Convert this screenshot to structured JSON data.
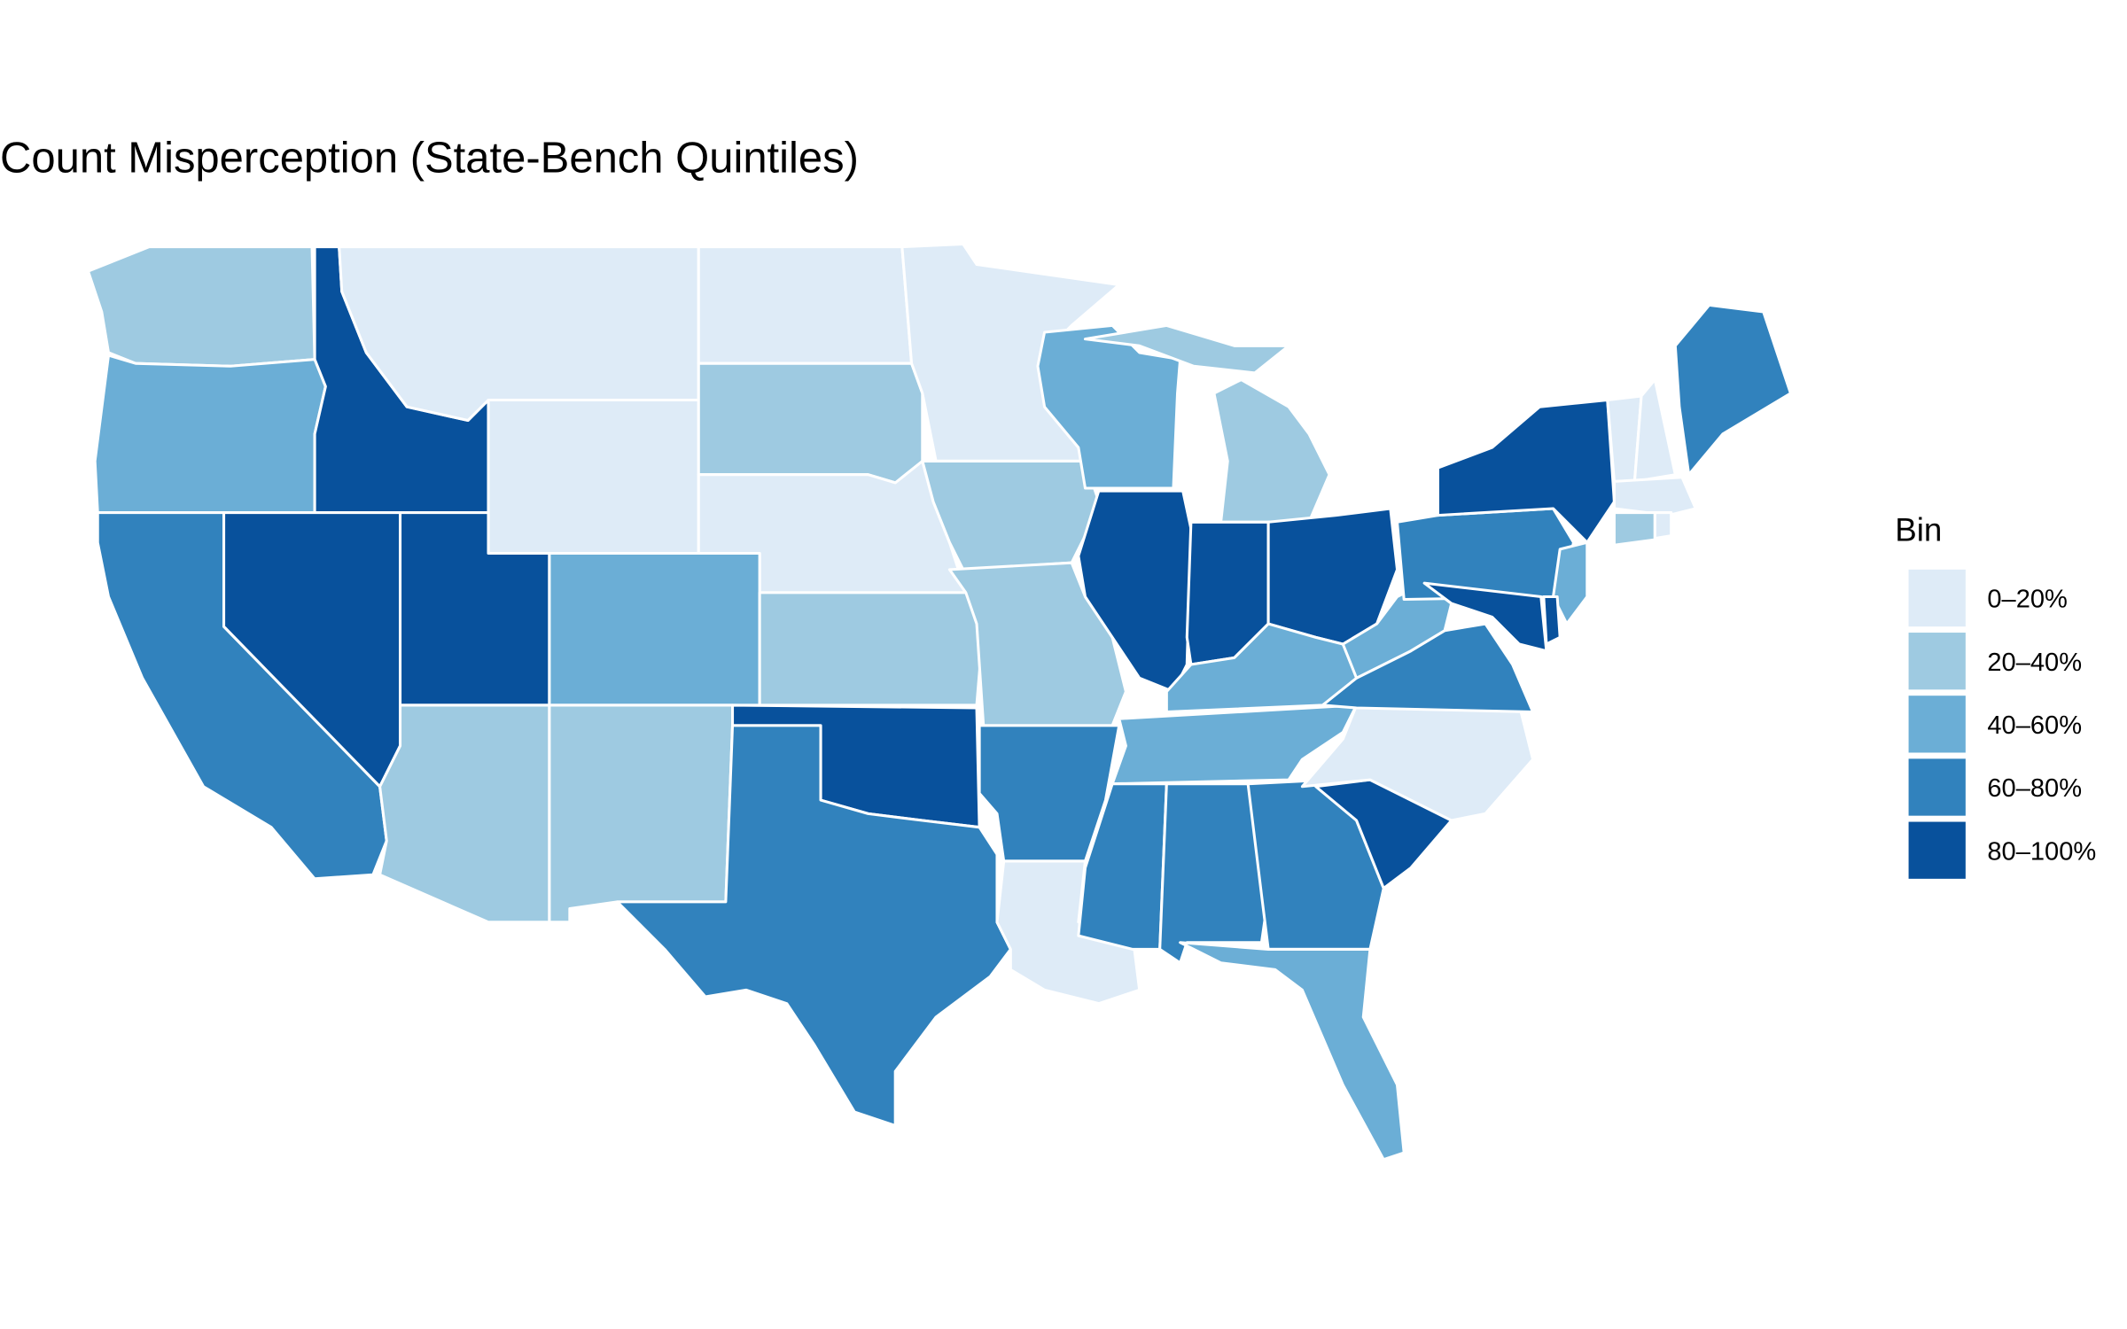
{
  "title": "Count Misperception (State-Bench Quintiles)",
  "legend": {
    "title": "Bin",
    "items": [
      {
        "label": "0–20%",
        "color": "#deebf7"
      },
      {
        "label": "20–40%",
        "color": "#9ecae1"
      },
      {
        "label": "40–60%",
        "color": "#6baed6"
      },
      {
        "label": "60–80%",
        "color": "#3182bd"
      },
      {
        "label": "80–100%",
        "color": "#08519c"
      }
    ]
  }
}
